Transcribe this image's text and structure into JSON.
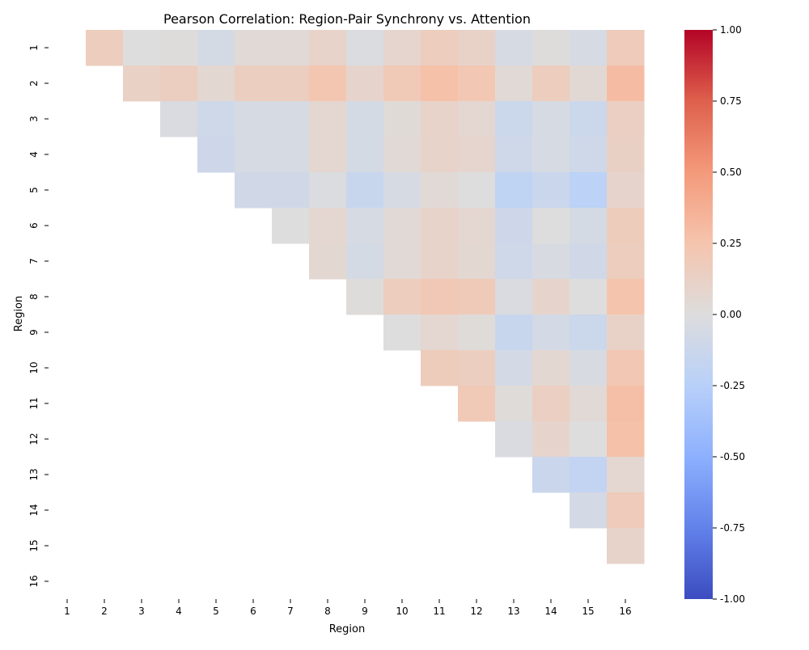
{
  "chart_data": {
    "type": "heatmap",
    "title": "Pearson Correlation: Region-Pair Synchrony vs. Attention",
    "xlabel": "Region",
    "ylabel": "Region",
    "x_labels": [
      "1",
      "2",
      "3",
      "4",
      "5",
      "6",
      "7",
      "8",
      "9",
      "10",
      "11",
      "12",
      "13",
      "14",
      "15",
      "16"
    ],
    "y_labels": [
      "1",
      "2",
      "3",
      "4",
      "5",
      "6",
      "7",
      "8",
      "9",
      "10",
      "11",
      "12",
      "13",
      "14",
      "15",
      "16"
    ],
    "mask": "upper-triangle (lower triangle and diagonal blank)",
    "colormap": "coolwarm",
    "vmin": -1.0,
    "vmax": 1.0,
    "colorbar_ticks": [
      "-1.00",
      "-0.75",
      "-0.50",
      "-0.25",
      "0.00",
      "0.25",
      "0.50",
      "0.75",
      "1.00"
    ],
    "colorbar_tick_values": [
      -1.0,
      -0.75,
      -0.5,
      -0.25,
      0.0,
      0.25,
      0.5,
      0.75,
      1.0
    ],
    "matrix": [
      [
        null,
        0.16,
        0.0,
        0.01,
        -0.06,
        0.04,
        0.04,
        0.1,
        -0.02,
        0.08,
        0.16,
        0.11,
        -0.05,
        0.01,
        -0.05,
        0.18
      ],
      [
        null,
        null,
        0.12,
        0.15,
        0.06,
        0.15,
        0.15,
        0.23,
        0.09,
        0.2,
        0.27,
        0.22,
        0.04,
        0.16,
        0.05,
        0.3
      ],
      [
        null,
        null,
        null,
        -0.03,
        -0.1,
        -0.05,
        -0.05,
        0.07,
        -0.06,
        0.03,
        0.1,
        0.07,
        -0.12,
        -0.05,
        -0.12,
        0.14
      ],
      [
        null,
        null,
        null,
        null,
        -0.11,
        -0.05,
        -0.05,
        0.07,
        -0.06,
        0.04,
        0.1,
        0.08,
        -0.1,
        -0.05,
        -0.1,
        0.13
      ],
      [
        null,
        null,
        null,
        null,
        null,
        -0.09,
        -0.09,
        -0.02,
        -0.14,
        -0.05,
        0.04,
        0.0,
        -0.2,
        -0.13,
        -0.22,
        0.09
      ],
      [
        null,
        null,
        null,
        null,
        null,
        null,
        0.0,
        0.07,
        -0.05,
        0.04,
        0.1,
        0.07,
        -0.11,
        0.0,
        -0.06,
        0.17
      ],
      [
        null,
        null,
        null,
        null,
        null,
        null,
        null,
        0.06,
        -0.06,
        0.04,
        0.1,
        0.06,
        -0.1,
        -0.04,
        -0.09,
        0.16
      ],
      [
        null,
        null,
        null,
        null,
        null,
        null,
        null,
        null,
        0.01,
        0.16,
        0.21,
        0.19,
        -0.03,
        0.09,
        0.0,
        0.25
      ],
      [
        null,
        null,
        null,
        null,
        null,
        null,
        null,
        null,
        null,
        0.0,
        0.07,
        0.02,
        -0.14,
        -0.07,
        -0.12,
        0.11
      ],
      [
        null,
        null,
        null,
        null,
        null,
        null,
        null,
        null,
        null,
        null,
        0.17,
        0.15,
        -0.07,
        0.06,
        -0.04,
        0.22
      ],
      [
        null,
        null,
        null,
        null,
        null,
        null,
        null,
        null,
        null,
        null,
        null,
        0.2,
        0.02,
        0.14,
        0.04,
        0.28
      ],
      [
        null,
        null,
        null,
        null,
        null,
        null,
        null,
        null,
        null,
        null,
        null,
        null,
        -0.03,
        0.09,
        0.0,
        0.27
      ],
      [
        null,
        null,
        null,
        null,
        null,
        null,
        null,
        null,
        null,
        null,
        null,
        null,
        null,
        -0.13,
        -0.18,
        0.07
      ],
      [
        null,
        null,
        null,
        null,
        null,
        null,
        null,
        null,
        null,
        null,
        null,
        null,
        null,
        null,
        -0.07,
        0.18
      ],
      [
        null,
        null,
        null,
        null,
        null,
        null,
        null,
        null,
        null,
        null,
        null,
        null,
        null,
        null,
        null,
        0.1
      ],
      [
        null,
        null,
        null,
        null,
        null,
        null,
        null,
        null,
        null,
        null,
        null,
        null,
        null,
        null,
        null,
        null
      ]
    ]
  }
}
